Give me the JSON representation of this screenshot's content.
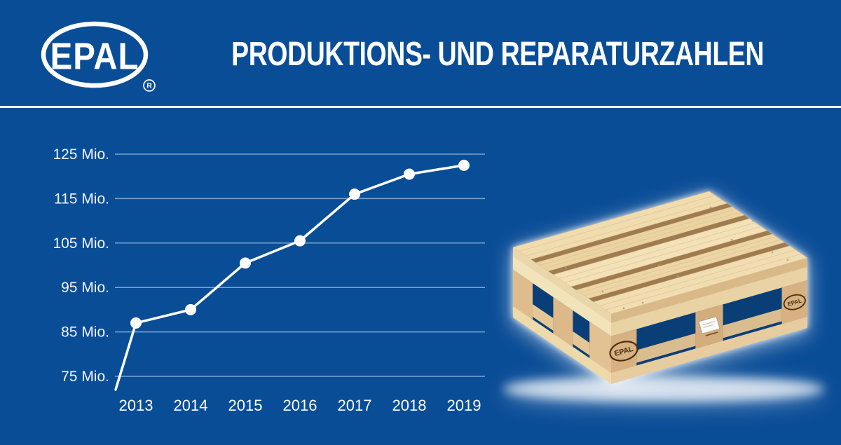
{
  "page": {
    "background_color": "#0A4D97",
    "divider_color": "#FFFFFF"
  },
  "header": {
    "logo": {
      "text": "EPAL",
      "registered_mark": "R",
      "color": "#FFFFFF"
    },
    "title": "PRODUKTIONS- UND REPARATURZAHLEN",
    "title_color": "#FFFFFF"
  },
  "chart_data": {
    "type": "line",
    "title": "",
    "xlabel": "",
    "ylabel": "",
    "unit": "Mio.",
    "categories": [
      "2013",
      "2014",
      "2015",
      "2016",
      "2017",
      "2018",
      "2019"
    ],
    "series": [
      {
        "name": "Produktions- und Reparaturzahlen",
        "values": [
          87,
          90,
          100.5,
          105.5,
          116,
          120.5,
          122.5
        ]
      }
    ],
    "lead_in_value": 72,
    "ylim": [
      75,
      125
    ],
    "y_ticks": [
      {
        "value": 125,
        "label": "125 Mio."
      },
      {
        "value": 115,
        "label": "115 Mio."
      },
      {
        "value": 105,
        "label": "105 Mio."
      },
      {
        "value": 95,
        "label": "95 Mio."
      },
      {
        "value": 85,
        "label": "85 Mio."
      },
      {
        "value": 75,
        "label": "75 Mio."
      }
    ],
    "grid": true,
    "legend": false,
    "line_color": "#FFFFFF",
    "marker_color": "#FFFFFF",
    "grid_color": "#9CBBDB",
    "tick_text_color": "#F2F6FB",
    "x_tick_text_color": "#FFFFFF"
  },
  "pallet": {
    "description": "EPAL wooden euro pallet photo",
    "brand_stamp": "EPAL",
    "brand_stamp_small": "EPAL"
  }
}
